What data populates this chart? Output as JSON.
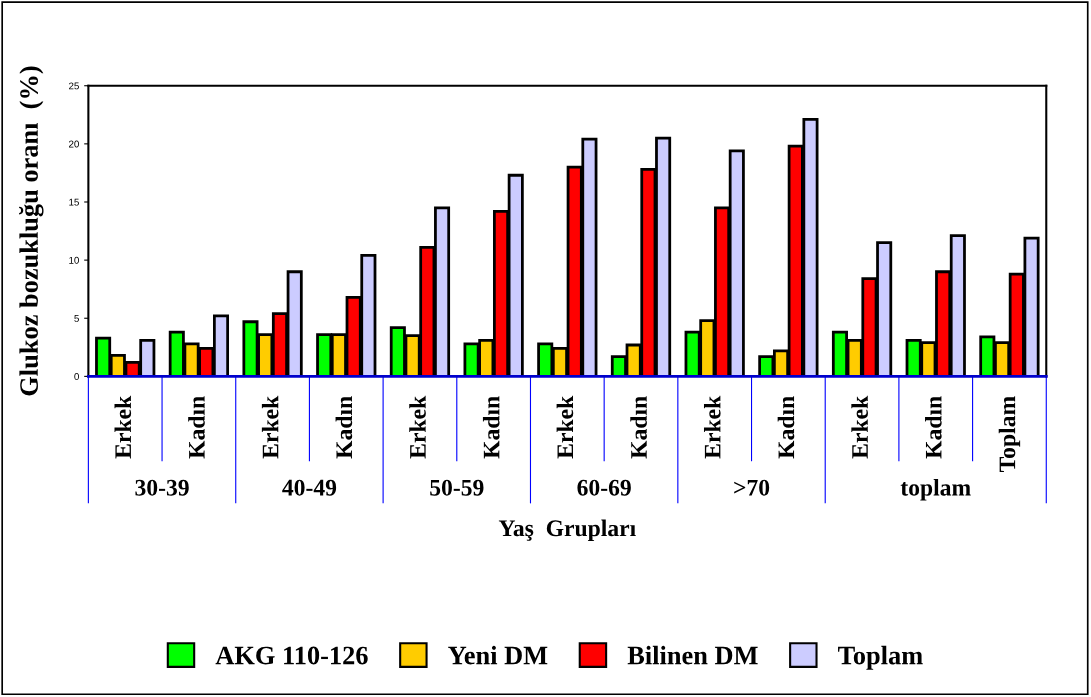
{
  "chart_data": {
    "type": "bar",
    "ylabel": "Glukoz bozukluğu oranı  (%)",
    "xlabel": "Yaş  Grupları",
    "categories": [
      "Erkek",
      "Kadın",
      "Erkek",
      "Kadın",
      "Erkek",
      "Kadın",
      "Erkek",
      "Kadın",
      "Erkek",
      "Kadın",
      "Erkek",
      "Kadın",
      "Toplam"
    ],
    "annotations": [
      "30-39",
      "40-49",
      "50-59",
      "60-69",
      ">70",
      "toplam"
    ],
    "series": [
      {
        "name": "AKG 110-126",
        "color": "#00ff00",
        "values": [
          3.3,
          3.8,
          4.7,
          3.6,
          4.2,
          2.8,
          2.8,
          1.7,
          3.8,
          1.7,
          3.8,
          3.1,
          3.4
        ]
      },
      {
        "name": "Yeni DM",
        "color": "#ffcc00",
        "values": [
          1.8,
          2.8,
          3.6,
          3.6,
          3.5,
          3.1,
          2.4,
          2.7,
          4.8,
          2.2,
          3.1,
          2.9,
          2.9
        ]
      },
      {
        "name": "Bilinen DM",
        "color": "#ff0000",
        "values": [
          1.2,
          2.4,
          5.4,
          6.8,
          11.1,
          14.2,
          18.0,
          17.8,
          14.5,
          19.8,
          8.4,
          9.0,
          8.8
        ]
      },
      {
        "name": "Toplam",
        "color": "#ccccff",
        "values": [
          3.1,
          5.2,
          9.0,
          10.4,
          14.5,
          17.3,
          20.4,
          20.5,
          19.4,
          22.1,
          11.5,
          12.1,
          11.9
        ]
      }
    ],
    "ylim": [
      0,
      25
    ],
    "yticks": [
      0,
      5,
      10,
      15,
      20,
      25
    ],
    "grid": false,
    "legend": "bottom"
  }
}
